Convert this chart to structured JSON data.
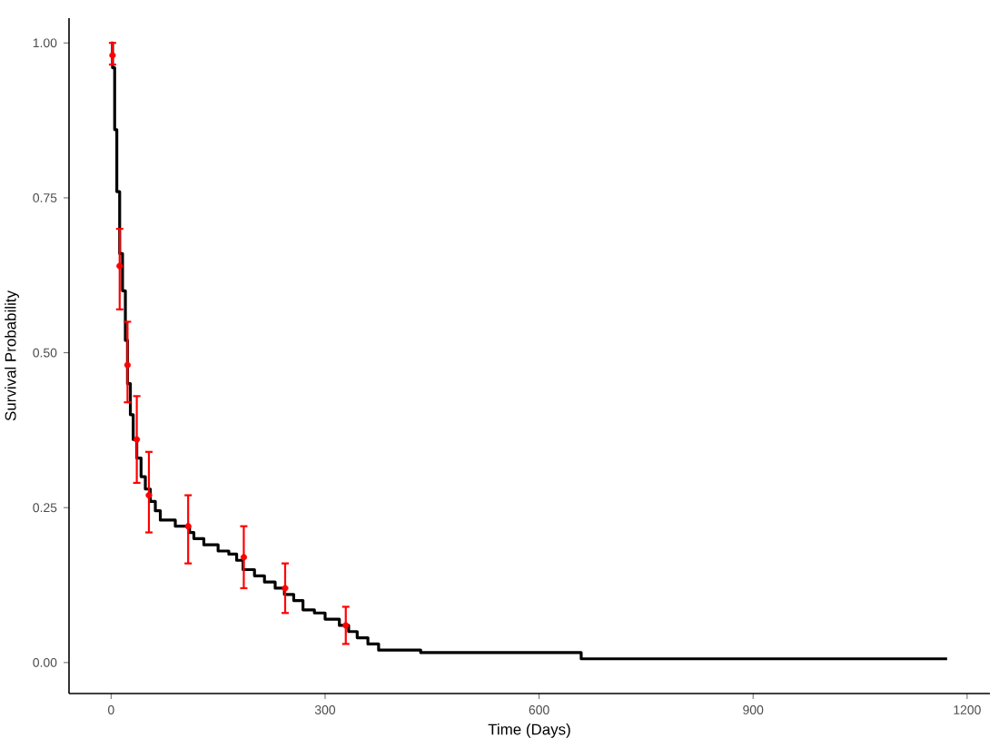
{
  "chart_data": {
    "type": "step",
    "xlabel": "Time (Days)",
    "ylabel": "Survival Probability",
    "xlim": [
      -59,
      1232
    ],
    "ylim": [
      -0.05,
      1.04
    ],
    "xticks": [
      0,
      300,
      600,
      900,
      1200
    ],
    "yticks": [
      {
        "value": 0,
        "label": "0.00"
      },
      {
        "value": 0.25,
        "label": "0.25"
      },
      {
        "value": 0.5,
        "label": "0.50"
      },
      {
        "value": 0.75,
        "label": "0.75"
      },
      {
        "value": 1,
        "label": "1.00"
      }
    ],
    "grid": false,
    "marker": "none",
    "line_style": "solid",
    "series": [
      {
        "color": "#000000",
        "x": [
          0,
          2,
          5,
          8,
          12,
          16,
          20,
          23,
          27,
          31,
          36,
          42,
          48,
          55,
          62,
          69,
          90,
          110,
          116,
          130,
          150,
          165,
          176,
          185,
          201,
          215,
          230,
          243,
          256,
          269,
          285,
          300,
          320,
          333,
          345,
          360,
          375,
          434,
          659,
          1172
        ],
        "values": [
          1.0,
          0.96,
          0.86,
          0.76,
          0.66,
          0.6,
          0.52,
          0.45,
          0.4,
          0.36,
          0.33,
          0.3,
          0.28,
          0.26,
          0.245,
          0.23,
          0.22,
          0.21,
          0.2,
          0.19,
          0.18,
          0.175,
          0.165,
          0.15,
          0.14,
          0.13,
          0.12,
          0.11,
          0.1,
          0.085,
          0.08,
          0.07,
          0.06,
          0.05,
          0.04,
          0.03,
          0.02,
          0.016,
          0.006,
          0.006
        ]
      },
      {
        "type": "scatter",
        "marker": "circle",
        "color": "#ff0000",
        "x": [
          2,
          12,
          23,
          36,
          53,
          108,
          186,
          244,
          329
        ],
        "values": [
          0.98,
          0.64,
          0.48,
          0.36,
          0.27,
          0.22,
          0.17,
          0.12,
          0.06
        ],
        "errors": [
          [
            0.965,
            1.0
          ],
          [
            0.57,
            0.7
          ],
          [
            0.42,
            0.55
          ],
          [
            0.29,
            0.43
          ],
          [
            0.21,
            0.34
          ],
          [
            0.16,
            0.27
          ],
          [
            0.12,
            0.22
          ],
          [
            0.08,
            0.16
          ],
          [
            0.03,
            0.09
          ]
        ]
      }
    ]
  }
}
